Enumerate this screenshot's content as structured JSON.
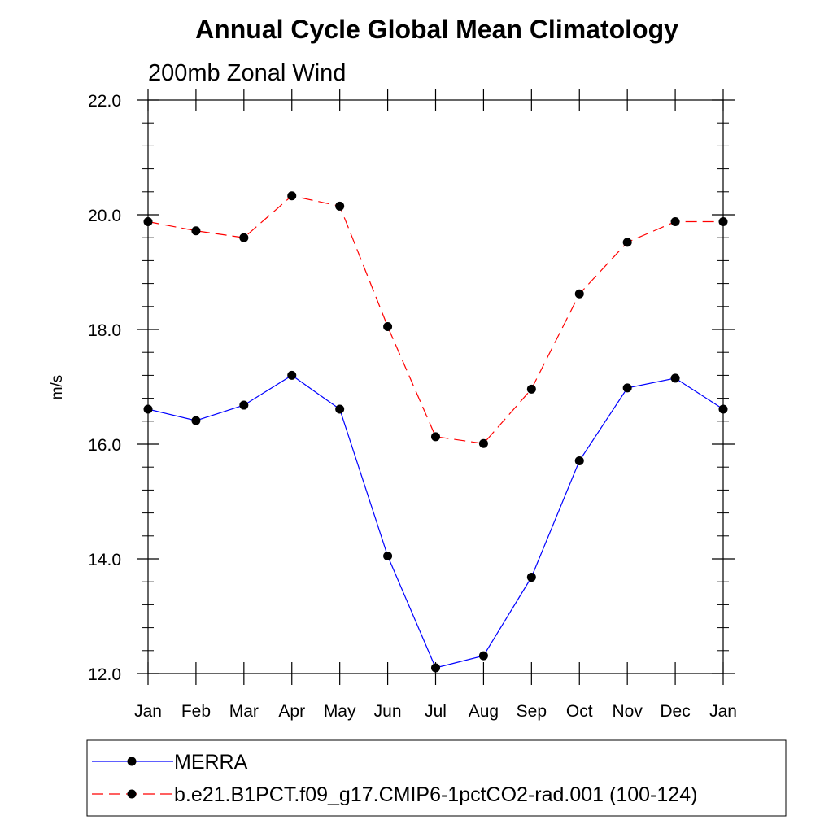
{
  "chart_data": {
    "type": "line",
    "title": "Annual Cycle Global Mean Climatology",
    "subtitle": "200mb Zonal Wind",
    "xlabel": "",
    "ylabel": "m/s",
    "ylim": [
      12.0,
      22.0
    ],
    "yticks": [
      "12.0",
      "14.0",
      "16.0",
      "18.0",
      "20.0",
      "22.0"
    ],
    "categories": [
      "Jan",
      "Feb",
      "Mar",
      "Apr",
      "May",
      "Jun",
      "Jul",
      "Aug",
      "Sep",
      "Oct",
      "Nov",
      "Dec",
      "Jan"
    ],
    "grid": false,
    "legend_position": "bottom",
    "series": [
      {
        "name": "MERRA",
        "color": "#0000ff",
        "dash": "solid",
        "marker": "filled-circle",
        "values": [
          16.61,
          16.41,
          16.68,
          17.2,
          16.61,
          14.05,
          12.1,
          12.31,
          13.68,
          15.71,
          16.98,
          17.15,
          16.61
        ]
      },
      {
        "name": "b.e21.B1PCT.f09_g17.CMIP6-1pctCO2-rad.001 (100-124)",
        "color": "#ff0000",
        "dash": "dashed",
        "marker": "filled-circle",
        "values": [
          19.88,
          19.72,
          19.6,
          20.33,
          20.15,
          18.05,
          16.13,
          16.01,
          16.96,
          18.62,
          19.52,
          19.88,
          19.88
        ]
      }
    ]
  }
}
